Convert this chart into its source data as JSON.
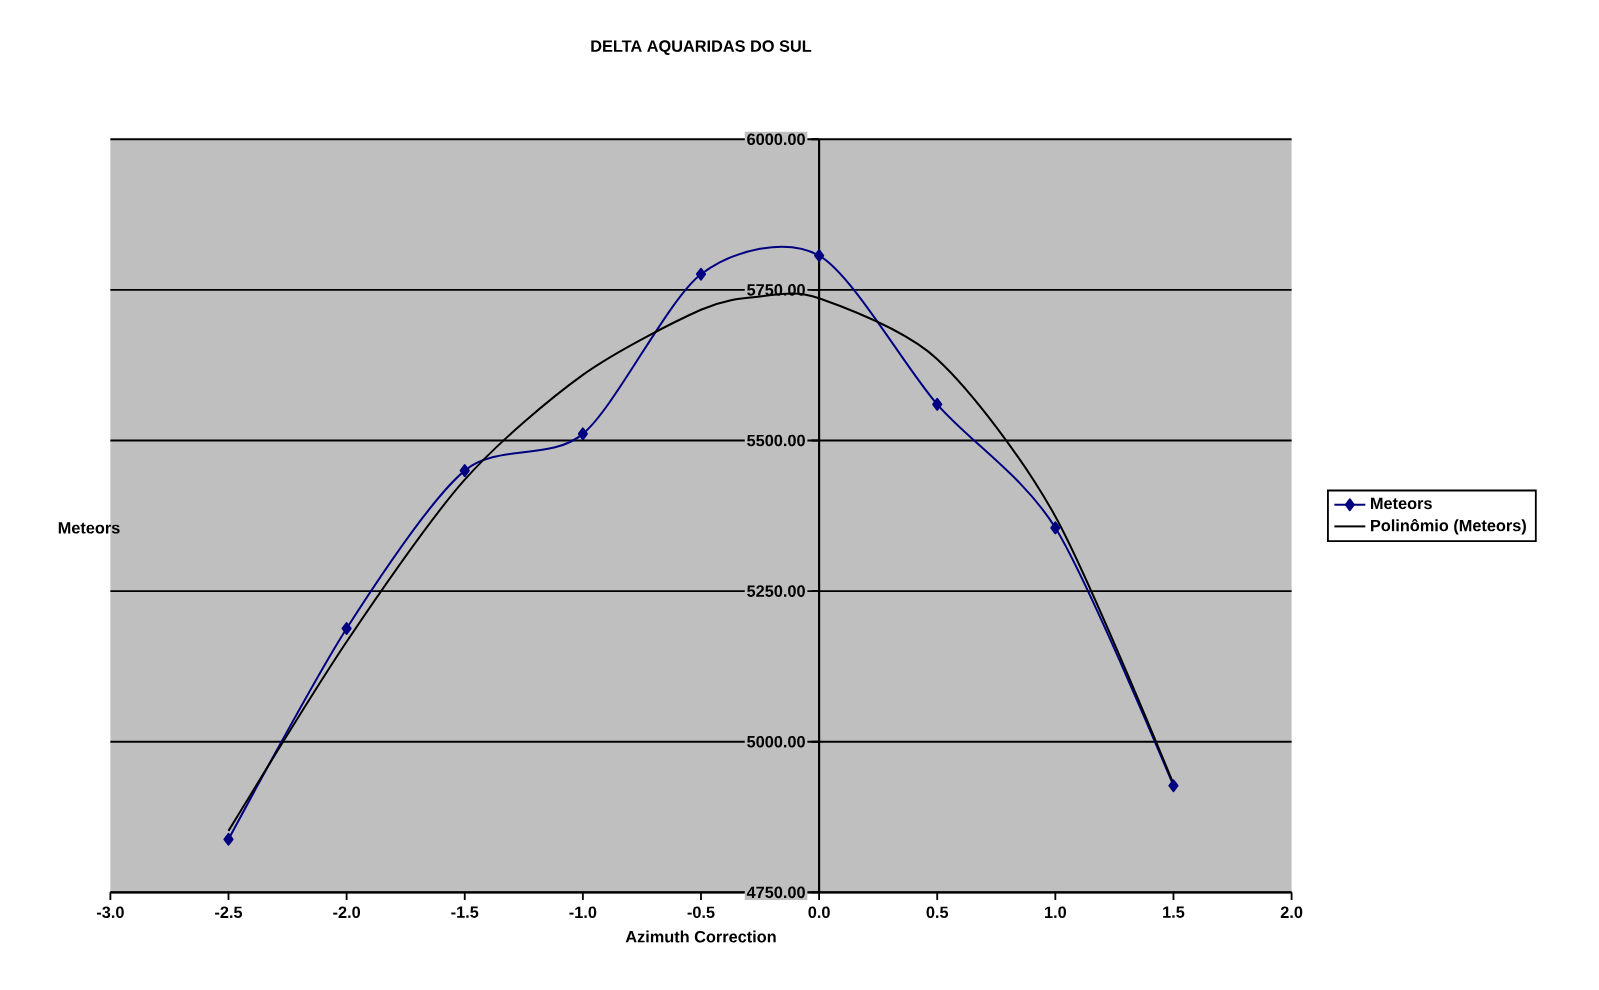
{
  "chart_data": {
    "type": "line",
    "title": "DELTA AQUARIDAS DO SUL",
    "xlabel": "Azimuth Correction",
    "ylabel": "Meteors",
    "x": [
      -2.5,
      -2.0,
      -1.5,
      -1.0,
      -0.5,
      0.0,
      0.5,
      1.0,
      1.5
    ],
    "series": [
      {
        "name": "Meteors",
        "color": "#000080",
        "marker": "diamond",
        "values": [
          4838,
          5188,
          5450,
          5511,
          5776,
          5807,
          5560,
          5355,
          4927
        ]
      },
      {
        "name": "Polinômio (Meteors)",
        "color": "#000000",
        "marker": "none",
        "x": [
          -2.5,
          -2.0,
          -1.5,
          -1.0,
          -0.5,
          -0.25,
          0.0,
          0.5,
          1.0,
          1.5
        ],
        "values": [
          4852,
          5166,
          5435,
          5609,
          5717,
          5739,
          5736,
          5635,
          5374,
          4930
        ]
      }
    ],
    "xlim": [
      -3,
      2
    ],
    "xticks": [
      {
        "value": -3,
        "label": "-3.0"
      },
      {
        "value": -2.5,
        "label": "-2.5"
      },
      {
        "value": -2,
        "label": "-2.0"
      },
      {
        "value": -1.5,
        "label": "-1.5"
      },
      {
        "value": -1,
        "label": "-1.0"
      },
      {
        "value": -0.5,
        "label": "-0.5"
      },
      {
        "value": 0,
        "label": "0.0"
      },
      {
        "value": 0.5,
        "label": "0.5"
      },
      {
        "value": 1,
        "label": "1.0"
      },
      {
        "value": 1.5,
        "label": "1.5"
      },
      {
        "value": 2,
        "label": "2.0"
      }
    ],
    "ylim": [
      4750,
      6000
    ],
    "yticks": [
      {
        "value": 4750,
        "label": "4750.00"
      },
      {
        "value": 5000,
        "label": "5000.00"
      },
      {
        "value": 5250,
        "label": "5250.00"
      },
      {
        "value": 5500,
        "label": "5500.00"
      },
      {
        "value": 5750,
        "label": "5750.00"
      },
      {
        "value": 6000,
        "label": "6000.00"
      }
    ],
    "grid": "y",
    "legend": "right",
    "line_style": "solid"
  }
}
